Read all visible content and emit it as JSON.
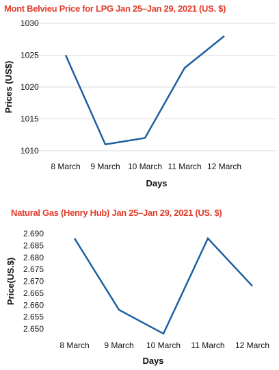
{
  "chart_data": [
    {
      "type": "line",
      "title": "Mont Belvieu Price for LPG  Jan 25–Jan 29, 2021 (US. $)",
      "xlabel": "Days",
      "ylabel": "Prices (US$)",
      "categories": [
        "8 March",
        "9 March",
        "10 March",
        "11 March",
        "12 March"
      ],
      "values": [
        1025,
        1011,
        1012,
        1023,
        1028
      ],
      "ylim": [
        1010,
        1030
      ],
      "yticks": [
        1010,
        1015,
        1020,
        1025,
        1030
      ],
      "grid": true,
      "color": "#1f5fa0"
    },
    {
      "type": "line",
      "title": "Natural Gas (Henry Hub) Jan 25–Jan 29, 2021 (US. $)",
      "xlabel": "Days",
      "ylabel": "Price(US.$)",
      "categories": [
        "8 March",
        "9 March",
        "10 March",
        "11 March",
        "12 March"
      ],
      "values": [
        2.688,
        2.658,
        2.648,
        2.688,
        2.668
      ],
      "ylim": [
        2.65,
        2.69
      ],
      "yticks": [
        "2.650",
        "2.655",
        "2.660",
        "2.665",
        "2.670",
        "2.675",
        "2.680",
        "2.685",
        "2.690"
      ],
      "grid": false,
      "color": "#1f5fa0"
    }
  ]
}
